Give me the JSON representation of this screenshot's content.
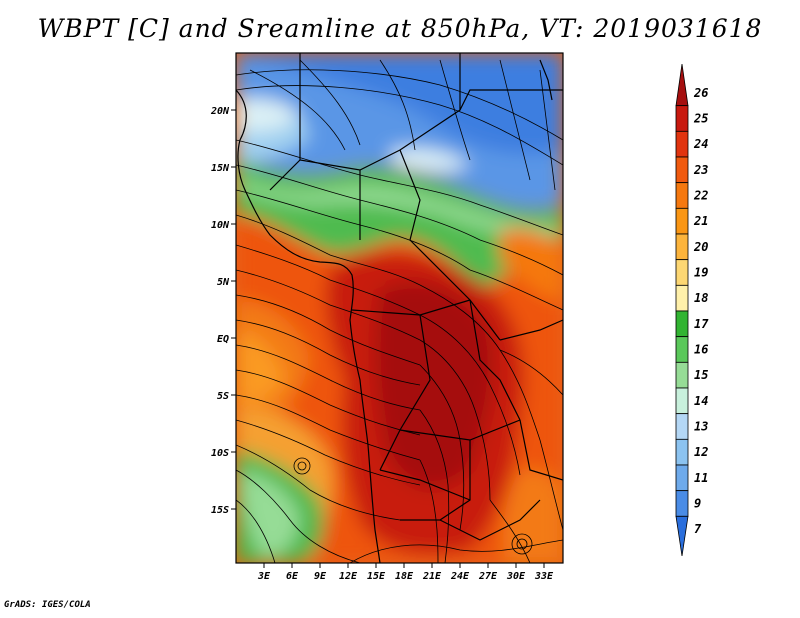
{
  "title": "WBPT [C] and Sreamline at 850hPa, VT: 2019031618",
  "footer": "GrADS: IGES/COLA",
  "map": {
    "lon_labels": [
      "3E",
      "6E",
      "9E",
      "12E",
      "15E",
      "18E",
      "21E",
      "24E",
      "27E",
      "30E",
      "33E"
    ],
    "lat_labels": [
      "20N",
      "15N",
      "10N",
      "5N",
      "EQ",
      "5S",
      "10S",
      "15S"
    ],
    "colorbar": {
      "labels": [
        "26",
        "25",
        "24",
        "23",
        "22",
        "21",
        "20",
        "19",
        "18",
        "17",
        "16",
        "15",
        "14",
        "13",
        "12",
        "11",
        "9",
        "7"
      ],
      "colors": [
        "#a50f0f",
        "#c8190f",
        "#e1340f",
        "#f05a0f",
        "#f5780f",
        "#fa9614",
        "#fcb43c",
        "#fdd773",
        "#fff0aa",
        "#32b432",
        "#5ac85a",
        "#96dc96",
        "#c8f0dc",
        "#b4d7f5",
        "#8cc3f0",
        "#6eaaeb",
        "#4a8ce6",
        "#2a6edc"
      ]
    }
  }
}
